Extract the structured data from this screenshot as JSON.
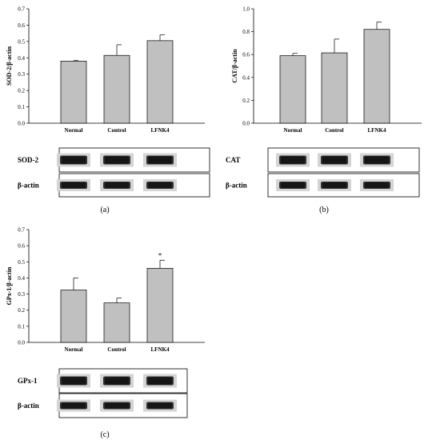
{
  "chart_data": [
    {
      "type": "bar",
      "categories": [
        "Normal",
        "Control",
        "LFNK4"
      ],
      "values": [
        0.38,
        0.415,
        0.505
      ],
      "errors": [
        0.003,
        0.065,
        0.035
      ],
      "annotations": [
        "",
        "",
        ""
      ],
      "ylabel": "SOD-2/β-actin",
      "ylim": [
        0,
        0.7
      ],
      "yticks": [
        "0.0",
        "0.1",
        "0.2",
        "0.3",
        "0.4",
        "0.5",
        "0.6",
        "0.7"
      ],
      "blot_labels": [
        "SOD-2",
        "β-actin"
      ],
      "panel_label": "(a)"
    },
    {
      "type": "bar",
      "categories": [
        "Normal",
        "Control",
        "LFNK4"
      ],
      "values": [
        0.59,
        0.615,
        0.82
      ],
      "errors": [
        0.02,
        0.12,
        0.065
      ],
      "annotations": [
        "",
        "",
        ""
      ],
      "ylabel": "CAT/β-actin",
      "ylim": [
        0,
        1.0
      ],
      "yticks": [
        "0.0",
        "0.2",
        "0.4",
        "0.6",
        "0.8",
        "1.0"
      ],
      "blot_labels": [
        "CAT",
        "β-actin"
      ],
      "panel_label": "(b)"
    },
    {
      "type": "bar",
      "categories": [
        "Normal",
        "Control",
        "LFNK4"
      ],
      "values": [
        0.325,
        0.245,
        0.46
      ],
      "errors": [
        0.075,
        0.03,
        0.05
      ],
      "annotations": [
        "",
        "",
        "*"
      ],
      "ylabel": "GPx-1/β-actin",
      "ylim": [
        0,
        0.7
      ],
      "yticks": [
        "0.0",
        "0.1",
        "0.2",
        "0.3",
        "0.4",
        "0.5",
        "0.6",
        "0.7"
      ],
      "blot_labels": [
        "GPx-1",
        "β-actin"
      ],
      "panel_label": "(c)"
    }
  ]
}
